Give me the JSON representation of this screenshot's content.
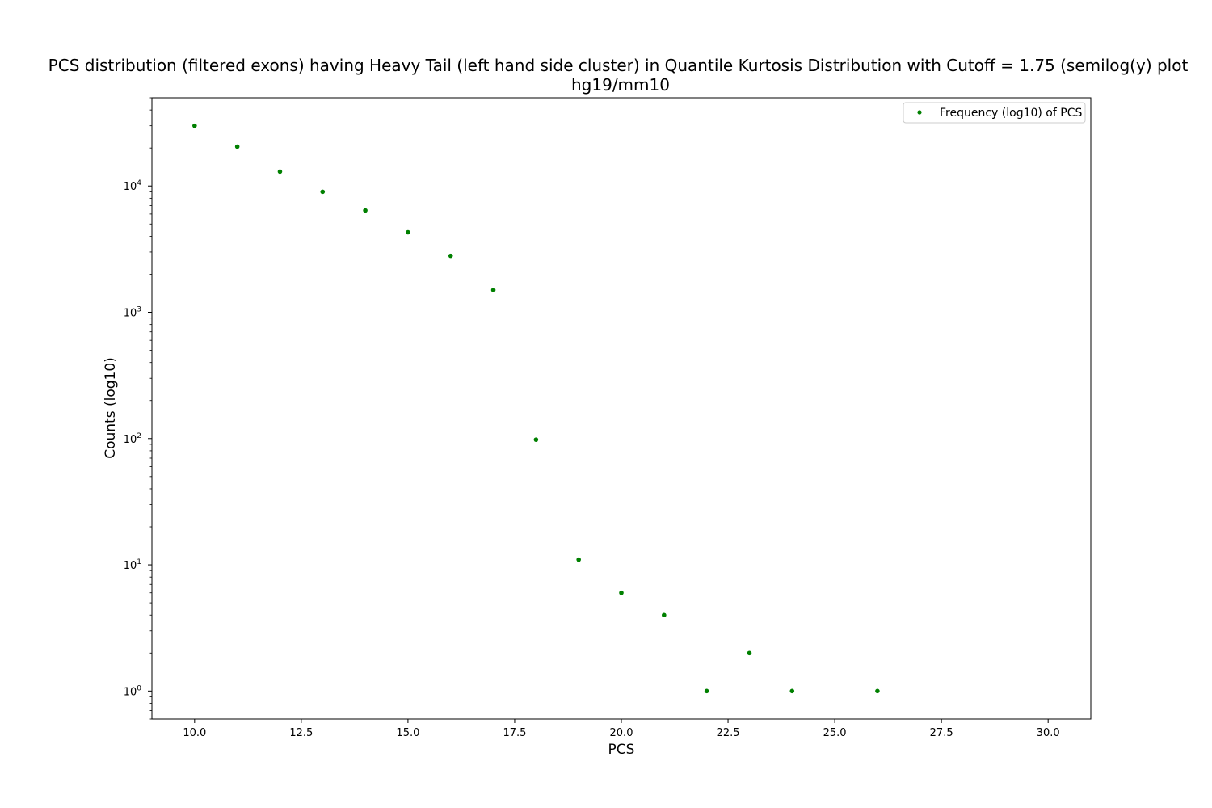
{
  "chart_data": {
    "type": "scatter",
    "title": "PCS distribution (filtered exons) having Heavy Tail (left hand side cluster) in Quantile Kurtosis Distribution with Cutoff = 1.75 (semilog(y) plot",
    "subtitle": "hg19/mm10",
    "xlabel": "PCS",
    "ylabel": "Counts (log10)",
    "xlim": [
      9.0,
      31.0
    ],
    "ylim": [
      0.6,
      50000
    ],
    "yscale": "log",
    "grid": false,
    "legend_position": "top-right",
    "x_ticks": [
      10.0,
      12.5,
      15.0,
      17.5,
      20.0,
      22.5,
      25.0,
      27.5,
      30.0
    ],
    "x_tick_labels": [
      "10.0",
      "12.5",
      "15.0",
      "17.5",
      "20.0",
      "22.5",
      "25.0",
      "27.5",
      "30.0"
    ],
    "y_ticks": [
      {
        "value": 1,
        "base": "10",
        "exp": "0"
      },
      {
        "value": 10,
        "base": "10",
        "exp": "1"
      },
      {
        "value": 100,
        "base": "10",
        "exp": "2"
      },
      {
        "value": 1000,
        "base": "10",
        "exp": "3"
      },
      {
        "value": 10000,
        "base": "10",
        "exp": "4"
      }
    ],
    "series": [
      {
        "name": "Frequency (log10) of PCS",
        "color": "#008000",
        "x": [
          10,
          11,
          12,
          13,
          14,
          15,
          16,
          17,
          18,
          19,
          20,
          21,
          22,
          23,
          24,
          26
        ],
        "y": [
          30000,
          20500,
          13000,
          9000,
          6400,
          4300,
          2800,
          1500,
          98,
          11,
          6,
          4,
          1,
          2,
          1,
          1
        ]
      }
    ]
  }
}
